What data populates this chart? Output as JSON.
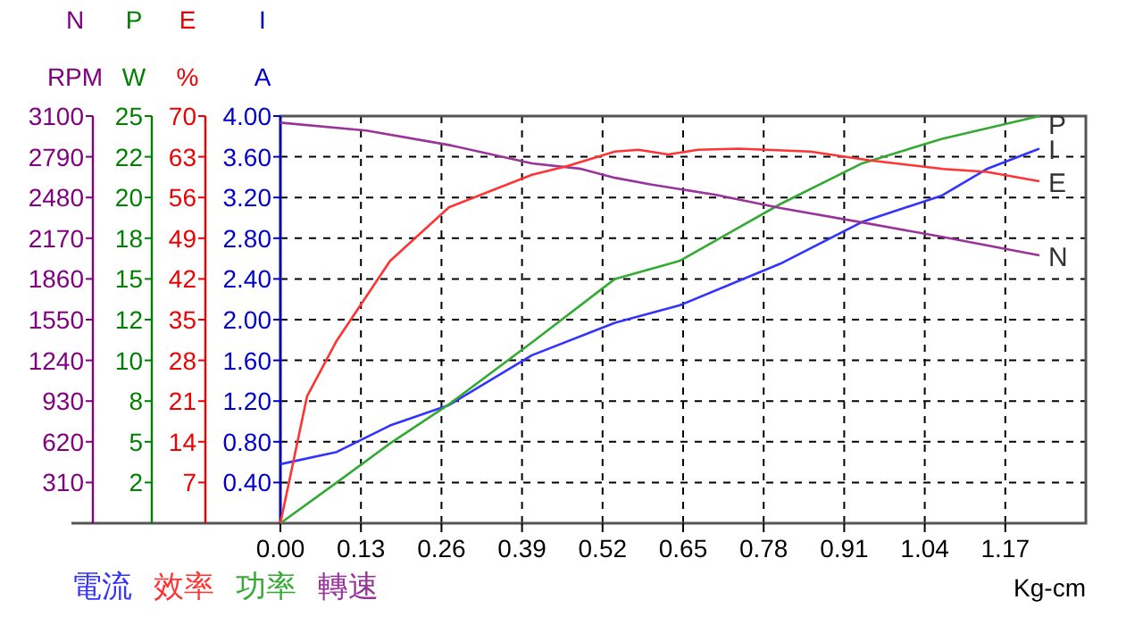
{
  "chart_data": [
    {
      "type": "line",
      "xlabel": "Kg-cm",
      "ylabel": "A",
      "y2label": "RPM",
      "y3label": "W",
      "xlim": [
        0,
        1.3
      ],
      "xticks": [
        {
          "value": 0,
          "label": "0.00"
        },
        {
          "value": 0.13,
          "label": "0.13"
        },
        {
          "value": 0.26,
          "label": "0.26"
        },
        {
          "value": 0.39,
          "label": "0.39"
        },
        {
          "value": 0.52,
          "label": "0.52"
        },
        {
          "value": 0.65,
          "label": "0.65"
        },
        {
          "value": 0.78,
          "label": "0.78"
        },
        {
          "value": 0.91,
          "label": "0.91"
        },
        {
          "value": 1.04,
          "label": "1.04"
        },
        {
          "value": 1.17,
          "label": "1.17"
        }
      ],
      "ylim": [
        0,
        4
      ],
      "yticks": [
        {
          "value": 0.4,
          "label": "0.40"
        },
        {
          "value": 0.8,
          "label": "0.80"
        },
        {
          "value": 1.2,
          "label": "1.20"
        },
        {
          "value": 1.6,
          "label": "1.60"
        },
        {
          "value": 2,
          "label": "2.00"
        },
        {
          "value": 2.4,
          "label": "2.40"
        },
        {
          "value": 2.8,
          "label": "2.80"
        },
        {
          "value": 3.2,
          "label": "3.20"
        },
        {
          "value": 3.6,
          "label": "3.60"
        },
        {
          "value": 4,
          "label": "4.00"
        }
      ],
      "y2lim": [
        0,
        3100
      ],
      "y2ticks": [
        310,
        620,
        930,
        1240,
        1550,
        1860,
        2170,
        2480,
        2790,
        3100
      ],
      "y3lim": [
        0,
        25
      ],
      "y3ticks": [
        {
          "value": 2.5,
          "label": "2"
        },
        {
          "value": 5,
          "label": "5"
        },
        {
          "value": 7.5,
          "label": "8"
        },
        {
          "value": 10,
          "label": "10"
        },
        {
          "value": 12.5,
          "label": "12"
        },
        {
          "value": 15,
          "label": "15"
        },
        {
          "value": 17.5,
          "label": "18"
        },
        {
          "value": 20,
          "label": "20"
        },
        {
          "value": 22.5,
          "label": "22"
        },
        {
          "value": 25,
          "label": "25"
        }
      ],
      "grid": true,
      "legend": "bottom left",
      "line_style": "solid",
      "marker": "none",
      "series": [
        {
          "name": "電流",
          "color": "#3333ff",
          "x": [
            0,
            0.091,
            0.177,
            0.272,
            0.406,
            0.54,
            0.644,
            0.807,
            0.939,
            1.068,
            1.14,
            1.225
          ],
          "values": [
            0.58,
            0.7,
            0.96,
            1.16,
            1.65,
            1.97,
            2.14,
            2.55,
            2.96,
            3.22,
            3.48,
            3.68
          ]
        },
        {
          "name": "功率",
          "color": "#33aa33",
          "axis": "y3",
          "x": [
            0,
            0.091,
            0.177,
            0.272,
            0.406,
            0.54,
            0.644,
            0.807,
            0.939,
            1.068,
            1.225
          ],
          "values": [
            0,
            2.5,
            4.9,
            7.3,
            11.1,
            15,
            16.1,
            19.6,
            22.1,
            23.6,
            25
          ]
        },
        {
          "name": "轉速",
          "color": "#993399",
          "axis": "y2",
          "x": [
            0,
            0.139,
            0.272,
            0.406,
            0.483,
            0.54,
            0.597,
            0.703,
            0.807,
            0.939,
            1.068,
            1.225
          ],
          "values": [
            3050,
            2990,
            2880,
            2740,
            2700,
            2630,
            2580,
            2500,
            2400,
            2290,
            2180,
            2040
          ]
        }
      ],
      "annotations": [
        "N",
        "P",
        "I",
        "I",
        "P",
        "N"
      ]
    },
    {
      "type": "line",
      "ylabel": "%",
      "xlim": [
        0,
        1.3
      ],
      "ylim": [
        0,
        70
      ],
      "yticks": [
        7,
        14,
        21,
        28,
        35,
        42,
        49,
        56,
        63,
        70
      ],
      "tick_labels": "y",
      "legend": "bottom left",
      "line_style": "solid",
      "marker": "none",
      "series": [
        {
          "name": "效率",
          "color": "#ff3333",
          "x": [
            0,
            0.043,
            0.091,
            0.177,
            0.272,
            0.406,
            0.463,
            0.54,
            0.578,
            0.626,
            0.674,
            0.74,
            0.855,
            0.95,
            1.07,
            1.14,
            1.225
          ],
          "values": [
            0,
            21.8,
            31.4,
            45.1,
            54.3,
            59.9,
            61.4,
            63.9,
            64.2,
            63.4,
            64.2,
            64.4,
            63.9,
            62.4,
            60.9,
            60.4,
            58.8
          ]
        }
      ],
      "annotations": [
        "E",
        "E"
      ]
    }
  ]
}
